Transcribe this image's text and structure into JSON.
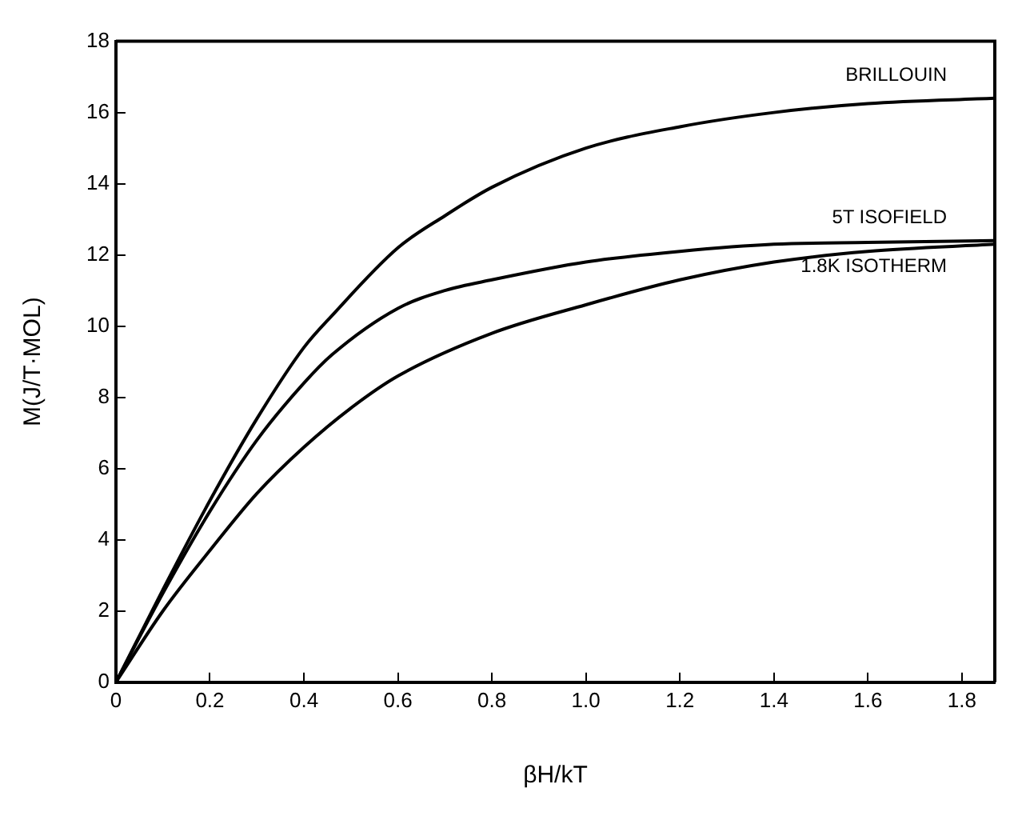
{
  "chart_data": {
    "type": "line",
    "xlabel": "βH/kT",
    "ylabel": "M(J/T·MOL)",
    "xlim": [
      0,
      1.87
    ],
    "ylim": [
      0,
      18
    ],
    "xticks": [
      0,
      0.2,
      0.4,
      0.6,
      0.8,
      {
        "value": 1,
        "label": "1.0"
      },
      1.2,
      1.4,
      1.6,
      1.8
    ],
    "yticks": [
      0,
      2,
      4,
      6,
      8,
      10,
      12,
      14,
      16,
      18
    ],
    "grid": false,
    "legend": false,
    "marker": "none",
    "line_style": "solid",
    "series": [
      {
        "name": "BRILLOUIN",
        "color": "#000000",
        "x": [
          0,
          0.1,
          0.2,
          0.3,
          0.4,
          0.46,
          0.6,
          0.7,
          0.8,
          1.0,
          1.2,
          1.4,
          1.6,
          1.87
        ],
        "values": [
          0,
          2.6,
          5.1,
          7.4,
          9.4,
          10.3,
          12.2,
          13.1,
          13.9,
          15.0,
          15.6,
          16.0,
          16.25,
          16.4
        ]
      },
      {
        "name": "5T ISOFIELD",
        "color": "#000000",
        "x": [
          0,
          0.1,
          0.2,
          0.3,
          0.4,
          0.46,
          0.6,
          0.7,
          0.8,
          1.0,
          1.2,
          1.4,
          1.6,
          1.87
        ],
        "values": [
          0,
          2.5,
          4.8,
          6.8,
          8.4,
          9.2,
          10.5,
          11.0,
          11.3,
          11.8,
          12.1,
          12.3,
          12.35,
          12.4
        ]
      },
      {
        "name": "1.8K ISOTHERM",
        "color": "#000000",
        "x": [
          0,
          0.1,
          0.2,
          0.3,
          0.4,
          0.5,
          0.6,
          0.8,
          1.0,
          1.2,
          1.4,
          1.6,
          1.87
        ],
        "values": [
          0,
          2.0,
          3.7,
          5.3,
          6.6,
          7.7,
          8.6,
          9.8,
          10.6,
          11.3,
          11.8,
          12.1,
          12.3
        ]
      }
    ]
  }
}
